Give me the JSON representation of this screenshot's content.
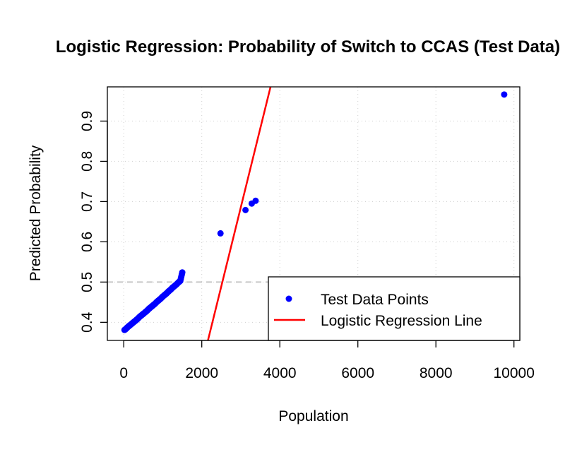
{
  "chart_data": {
    "type": "scatter",
    "title": "Logistic Regression: Probability of Switch to CCAS (Test Data)",
    "xlabel": "Population",
    "ylabel": "Predicted Probability",
    "xlim": [
      -420,
      10150
    ],
    "ylim": [
      0.355,
      0.985
    ],
    "x_ticks": [
      0,
      2000,
      4000,
      6000,
      8000,
      10000
    ],
    "y_ticks": [
      0.4,
      0.5,
      0.6,
      0.7,
      0.8,
      0.9
    ],
    "grid": true,
    "threshold": {
      "y": 0.5,
      "color": "#c8c8c8",
      "style": "dashed"
    },
    "legend": {
      "position": "bottom-right",
      "entries": [
        {
          "label": "Test Data Points",
          "type": "point",
          "color": "#0000ff"
        },
        {
          "label": "Logistic Regression Line",
          "type": "line",
          "color": "#ff0000"
        }
      ]
    },
    "series": [
      {
        "type": "scatter",
        "color": "#0000ff",
        "x": [
          20,
          60,
          100,
          150,
          200,
          250,
          300,
          350,
          400,
          450,
          500,
          550,
          600,
          650,
          700,
          750,
          800,
          850,
          900,
          950,
          1000,
          1050,
          1100,
          1150,
          1200,
          1250,
          1300,
          1350,
          1400,
          1450,
          1500,
          2480,
          3120,
          3280,
          3380,
          9750
        ],
        "y": [
          0.381,
          0.384,
          0.388,
          0.392,
          0.396,
          0.4,
          0.404,
          0.408,
          0.413,
          0.417,
          0.421,
          0.425,
          0.429,
          0.434,
          0.438,
          0.442,
          0.446,
          0.451,
          0.455,
          0.459,
          0.464,
          0.468,
          0.472,
          0.477,
          0.481,
          0.486,
          0.49,
          0.494,
          0.499,
          0.503,
          0.524,
          0.621,
          0.679,
          0.695,
          0.702,
          0.966
        ]
      },
      {
        "type": "line",
        "color": "#ff0000",
        "x": [
          2120,
          3800
        ],
        "y": [
          0.34,
          1.0
        ]
      }
    ]
  }
}
